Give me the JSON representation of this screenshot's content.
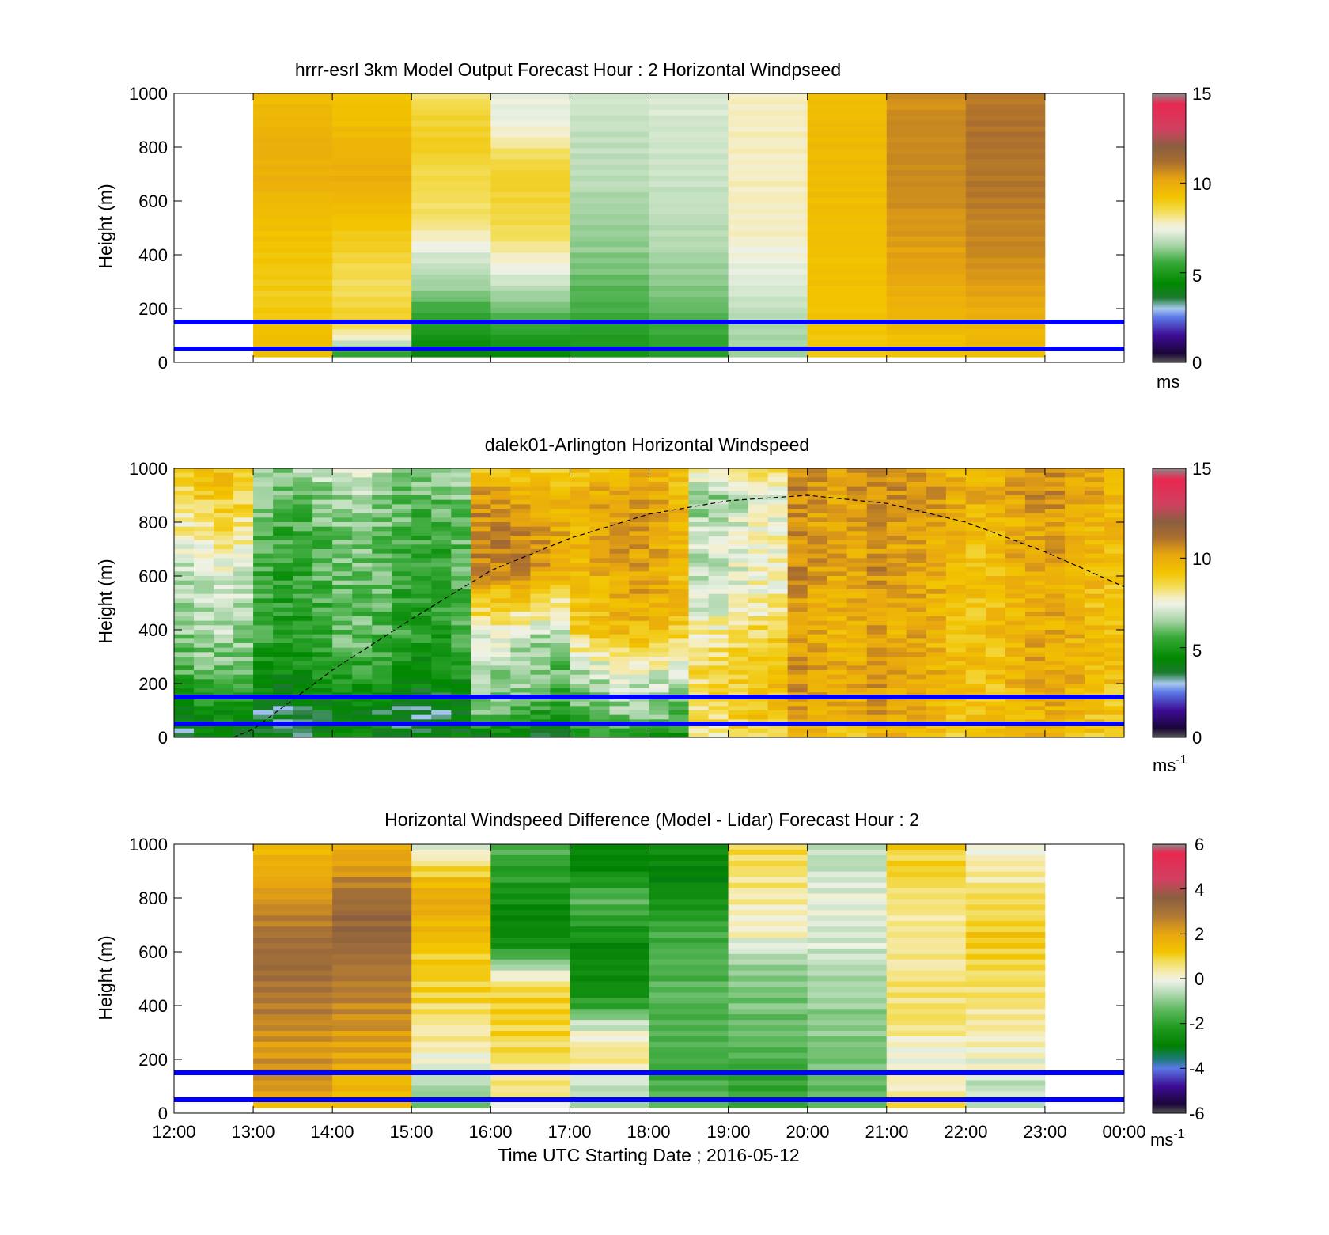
{
  "figure": {
    "xlabel": "Time UTC  Starting Date ; 2016-05-12",
    "x_tick_labels": [
      "12:00",
      "13:00",
      "14:00",
      "15:00",
      "16:00",
      "17:00",
      "18:00",
      "19:00",
      "20:00",
      "21:00",
      "22:00",
      "23:00",
      "00:00"
    ]
  },
  "chart_data": [
    {
      "type": "heatmap",
      "title": "hrrr-esrl 3km Model Output   Forecast Hour : 2 Horizontal Windpseed",
      "xlabel": "",
      "ylabel": "Height (m)",
      "xlim": [
        "12:00",
        "00:00"
      ],
      "ylim": [
        0,
        1000
      ],
      "y_tick_labels": [
        "0",
        "200",
        "400",
        "600",
        "800",
        "1000"
      ],
      "colorbar": {
        "range": [
          0,
          15
        ],
        "tick_labels": [
          "0",
          "5",
          "10",
          "15"
        ],
        "unit_text": "ms",
        "unit_superscript": ""
      },
      "reference_heights_m": [
        50,
        150
      ],
      "reference_line_color": "#0000ff",
      "columns": [
        {
          "start": "13:00",
          "end": "14:00",
          "top_m": 1000,
          "bottom_m": 20,
          "wind_ms": [
            9.5,
            9.6,
            9.7,
            9.9,
            9.8,
            9.9,
            9.6,
            9.4,
            9.3,
            9.2,
            9.1,
            9.0,
            9.0,
            9.2,
            9.4,
            9.5
          ]
        },
        {
          "start": "14:00",
          "end": "15:00",
          "top_m": 1000,
          "bottom_m": 20,
          "wind_ms": [
            9.2,
            9.3,
            9.5,
            9.7,
            9.8,
            9.9,
            9.6,
            9.3,
            9.0,
            8.8,
            8.5,
            8.4,
            8.6,
            8.9,
            7.5,
            5.0
          ]
        },
        {
          "start": "15:00",
          "end": "16:00",
          "top_m": 1000,
          "bottom_m": 20,
          "wind_ms": [
            8.2,
            8.6,
            8.8,
            8.9,
            8.6,
            8.5,
            8.4,
            8.3,
            7.9,
            7.2,
            6.8,
            6.4,
            5.8,
            5.2,
            4.8,
            4.2
          ]
        },
        {
          "start": "16:00",
          "end": "17:00",
          "top_m": 1000,
          "bottom_m": 20,
          "wind_ms": [
            7.4,
            7.3,
            7.6,
            8.1,
            8.6,
            8.8,
            8.7,
            8.6,
            8.4,
            7.9,
            7.4,
            6.8,
            6.2,
            5.7,
            5.0,
            4.4
          ]
        },
        {
          "start": "17:00",
          "end": "18:00",
          "top_m": 1000,
          "bottom_m": 20,
          "wind_ms": [
            7.0,
            7.0,
            6.9,
            6.8,
            6.8,
            6.7,
            6.6,
            6.5,
            6.4,
            6.3,
            6.1,
            5.9,
            5.7,
            5.4,
            5.1,
            4.8
          ]
        },
        {
          "start": "18:00",
          "end": "19:00",
          "top_m": 1000,
          "bottom_m": 20,
          "wind_ms": [
            7.1,
            7.1,
            7.0,
            7.0,
            7.0,
            6.9,
            6.9,
            6.8,
            6.7,
            6.6,
            6.4,
            6.2,
            6.0,
            5.7,
            5.4,
            5.1
          ]
        },
        {
          "start": "19:00",
          "end": "20:00",
          "top_m": 1000,
          "bottom_m": 20,
          "wind_ms": [
            7.8,
            7.8,
            7.8,
            7.8,
            7.8,
            7.8,
            7.8,
            7.8,
            7.8,
            7.5,
            7.3,
            7.1,
            6.9,
            6.7,
            6.5,
            6.3
          ]
        },
        {
          "start": "20:00",
          "end": "21:00",
          "top_m": 1000,
          "bottom_m": 20,
          "wind_ms": [
            9.4,
            9.4,
            9.5,
            9.5,
            9.5,
            9.5,
            9.4,
            9.4,
            9.4,
            9.3,
            9.3,
            9.3,
            9.2,
            9.2,
            9.1,
            9.0
          ]
        },
        {
          "start": "21:00",
          "end": "22:00",
          "top_m": 1000,
          "bottom_m": 20,
          "wind_ms": [
            10.6,
            10.6,
            10.7,
            10.7,
            10.7,
            10.6,
            10.6,
            10.5,
            10.4,
            10.3,
            10.2,
            10.0,
            9.8,
            9.6,
            9.4,
            9.2
          ]
        },
        {
          "start": "22:00",
          "end": "23:00",
          "top_m": 1000,
          "bottom_m": 20,
          "wind_ms": [
            11.0,
            11.0,
            11.1,
            11.1,
            11.1,
            11.0,
            11.0,
            10.9,
            10.8,
            10.7,
            10.5,
            10.3,
            10.0,
            9.8,
            9.6,
            9.3
          ]
        }
      ]
    },
    {
      "type": "heatmap",
      "title": "dalek01-Arlington  Horizontal Windspeed",
      "xlabel": "",
      "ylabel": "Height (m)",
      "xlim": [
        "12:00",
        "00:00"
      ],
      "ylim": [
        0,
        1000
      ],
      "y_tick_labels": [
        "0",
        "200",
        "400",
        "600",
        "800",
        "1000"
      ],
      "colorbar": {
        "range": [
          0,
          15
        ],
        "tick_labels": [
          "0",
          "5",
          "10",
          "15"
        ],
        "unit_text": "ms",
        "unit_superscript": "-1"
      },
      "reference_heights_m": [
        50,
        150
      ],
      "reference_line_color": "#0000ff",
      "data_end": "23:50",
      "profile_interval_minutes": 15,
      "regime_profiles": [
        {
          "from": "12:00",
          "to": "13:00",
          "wind_ms": [
            3.5,
            4.3,
            5.2,
            5.8,
            6.2,
            6.4,
            6.6,
            7.0,
            7.6,
            8.2,
            8.6,
            9.0
          ]
        },
        {
          "from": "13:00",
          "to": "15:45",
          "wind_ms": [
            4.2,
            3.8,
            4.5,
            5.0,
            5.5,
            5.5,
            5.6,
            5.7,
            5.8,
            6.0,
            6.3,
            6.8
          ]
        },
        {
          "from": "15:45",
          "to": "17:00",
          "wind_ms": [
            4.0,
            5.5,
            6.0,
            6.3,
            6.8,
            8.0,
            9.2,
            10.6,
            10.5,
            10.3,
            9.8,
            9.0
          ]
        },
        {
          "from": "17:00",
          "to": "18:30",
          "wind_ms": [
            5.0,
            6.0,
            6.5,
            7.4,
            8.8,
            9.4,
            9.7,
            9.8,
            9.9,
            10.0,
            9.8,
            9.5
          ]
        },
        {
          "from": "18:30",
          "to": "19:45",
          "wind_ms": [
            8.5,
            8.8,
            8.9,
            8.8,
            8.5,
            7.8,
            7.4,
            7.2,
            7.3,
            7.0,
            6.8,
            8.0
          ]
        },
        {
          "from": "19:45",
          "to": "21:00",
          "wind_ms": [
            9.6,
            10.2,
            10.3,
            10.3,
            10.2,
            10.2,
            10.4,
            10.5,
            10.5,
            10.4,
            10.6,
            10.8
          ]
        },
        {
          "from": "21:00",
          "to": "23:50",
          "wind_ms": [
            9.3,
            9.5,
            9.6,
            9.7,
            9.6,
            9.6,
            9.7,
            9.8,
            9.8,
            9.9,
            10.2,
            10.0
          ]
        }
      ],
      "boundary_layer_curve": {
        "style": "dashed",
        "color": "#000000",
        "points": [
          {
            "t": "12:45",
            "h_m": 0
          },
          {
            "t": "13:00",
            "h_m": 30
          },
          {
            "t": "14:00",
            "h_m": 250
          },
          {
            "t": "15:00",
            "h_m": 440
          },
          {
            "t": "16:00",
            "h_m": 620
          },
          {
            "t": "17:00",
            "h_m": 740
          },
          {
            "t": "18:00",
            "h_m": 830
          },
          {
            "t": "19:00",
            "h_m": 880
          },
          {
            "t": "20:00",
            "h_m": 900
          },
          {
            "t": "21:00",
            "h_m": 870
          },
          {
            "t": "22:00",
            "h_m": 800
          },
          {
            "t": "23:00",
            "h_m": 690
          },
          {
            "t": "00:00",
            "h_m": 560
          }
        ]
      }
    },
    {
      "type": "heatmap",
      "title": "Horizontal Windspeed Difference (Model - Lidar) Forecast Hour : 2",
      "xlabel": "Time UTC  Starting Date ; 2016-05-12",
      "ylabel": "Height (m)",
      "xlim": [
        "12:00",
        "00:00"
      ],
      "ylim": [
        0,
        1000
      ],
      "y_tick_labels": [
        "0",
        "200",
        "400",
        "600",
        "800",
        "1000"
      ],
      "colorbar": {
        "range": [
          -6,
          6
        ],
        "tick_labels": [
          "-6",
          "-4",
          "-2",
          "0",
          "2",
          "4",
          "6"
        ],
        "unit_text": "ms",
        "unit_superscript": "-1"
      },
      "reference_heights_m": [
        50,
        150
      ],
      "reference_line_color": "#0000ff",
      "columns": [
        {
          "start": "13:00",
          "end": "14:00",
          "top_m": 1000,
          "bottom_m": 20,
          "diff_ms": [
            1.6,
            1.7,
            1.9,
            2.2,
            2.6,
            3.0,
            3.2,
            3.2,
            3.0,
            2.8,
            2.6,
            2.3,
            2.2,
            2.6,
            2.2,
            1.5
          ]
        },
        {
          "start": "14:00",
          "end": "15:00",
          "top_m": 1000,
          "bottom_m": 20,
          "diff_ms": [
            1.8,
            2.0,
            2.6,
            3.1,
            3.3,
            3.4,
            3.2,
            2.9,
            2.7,
            2.6,
            2.4,
            2.2,
            2.0,
            1.8,
            1.6,
            1.5
          ]
        },
        {
          "start": "15:00",
          "end": "16:00",
          "top_m": 1000,
          "bottom_m": 20,
          "diff_ms": [
            -0.3,
            0.4,
            1.4,
            1.8,
            1.7,
            1.5,
            1.2,
            1.1,
            1.0,
            0.8,
            0.5,
            0.3,
            0.1,
            -0.4,
            -0.8,
            -1.0
          ]
        },
        {
          "start": "16:00",
          "end": "17:00",
          "top_m": 1000,
          "bottom_m": 20,
          "diff_ms": [
            -1.5,
            -1.9,
            -2.1,
            -2.4,
            -2.8,
            -2.9,
            -2.2,
            -0.5,
            0.7,
            1.0,
            1.0,
            0.9,
            0.8,
            0.5,
            0.6,
            -0.1
          ]
        },
        {
          "start": "17:00",
          "end": "18:00",
          "top_m": 1000,
          "bottom_m": 20,
          "diff_ms": [
            -2.8,
            -2.9,
            -2.3,
            -1.5,
            -1.8,
            -2.5,
            -2.8,
            -2.5,
            -2.6,
            -2.1,
            -0.8,
            0.2,
            0.5,
            -0.1,
            -0.5,
            -0.8
          ]
        },
        {
          "start": "18:00",
          "end": "19:00",
          "top_m": 1000,
          "bottom_m": 20,
          "diff_ms": [
            -2.4,
            -2.9,
            -3.0,
            -2.5,
            -2.1,
            -1.8,
            -1.6,
            -1.6,
            -1.5,
            -1.5,
            -1.6,
            -1.6,
            -1.7,
            -1.8,
            -1.6,
            -1.5
          ]
        },
        {
          "start": "19:00",
          "end": "20:00",
          "top_m": 1000,
          "bottom_m": 20,
          "diff_ms": [
            0.9,
            0.8,
            0.6,
            0.4,
            0.3,
            0.2,
            -0.4,
            -0.8,
            -1.0,
            -1.2,
            -1.3,
            -1.4,
            -1.6,
            -1.8,
            -2.0,
            -2.2
          ]
        },
        {
          "start": "20:00",
          "end": "21:00",
          "top_m": 1000,
          "bottom_m": 20,
          "diff_ms": [
            -0.5,
            -0.6,
            -0.4,
            -0.2,
            -0.1,
            -0.3,
            -0.4,
            -0.6,
            -0.7,
            -0.8,
            -1.0,
            -1.1,
            -1.2,
            -1.3,
            -1.4,
            -1.5
          ]
        },
        {
          "start": "21:00",
          "end": "22:00",
          "top_m": 1000,
          "bottom_m": 20,
          "diff_ms": [
            1.1,
            1.0,
            0.9,
            0.7,
            0.5,
            0.4,
            0.4,
            0.5,
            0.6,
            0.7,
            0.6,
            0.3,
            0.0,
            -0.2,
            0.4,
            1.0
          ]
        },
        {
          "start": "22:00",
          "end": "23:00",
          "top_m": 1000,
          "bottom_m": 20,
          "diff_ms": [
            0.0,
            0.2,
            0.4,
            0.8,
            1.0,
            1.1,
            1.1,
            1.0,
            0.8,
            0.6,
            0.4,
            0.2,
            0.0,
            -0.2,
            -0.5,
            -0.8
          ]
        }
      ]
    }
  ]
}
